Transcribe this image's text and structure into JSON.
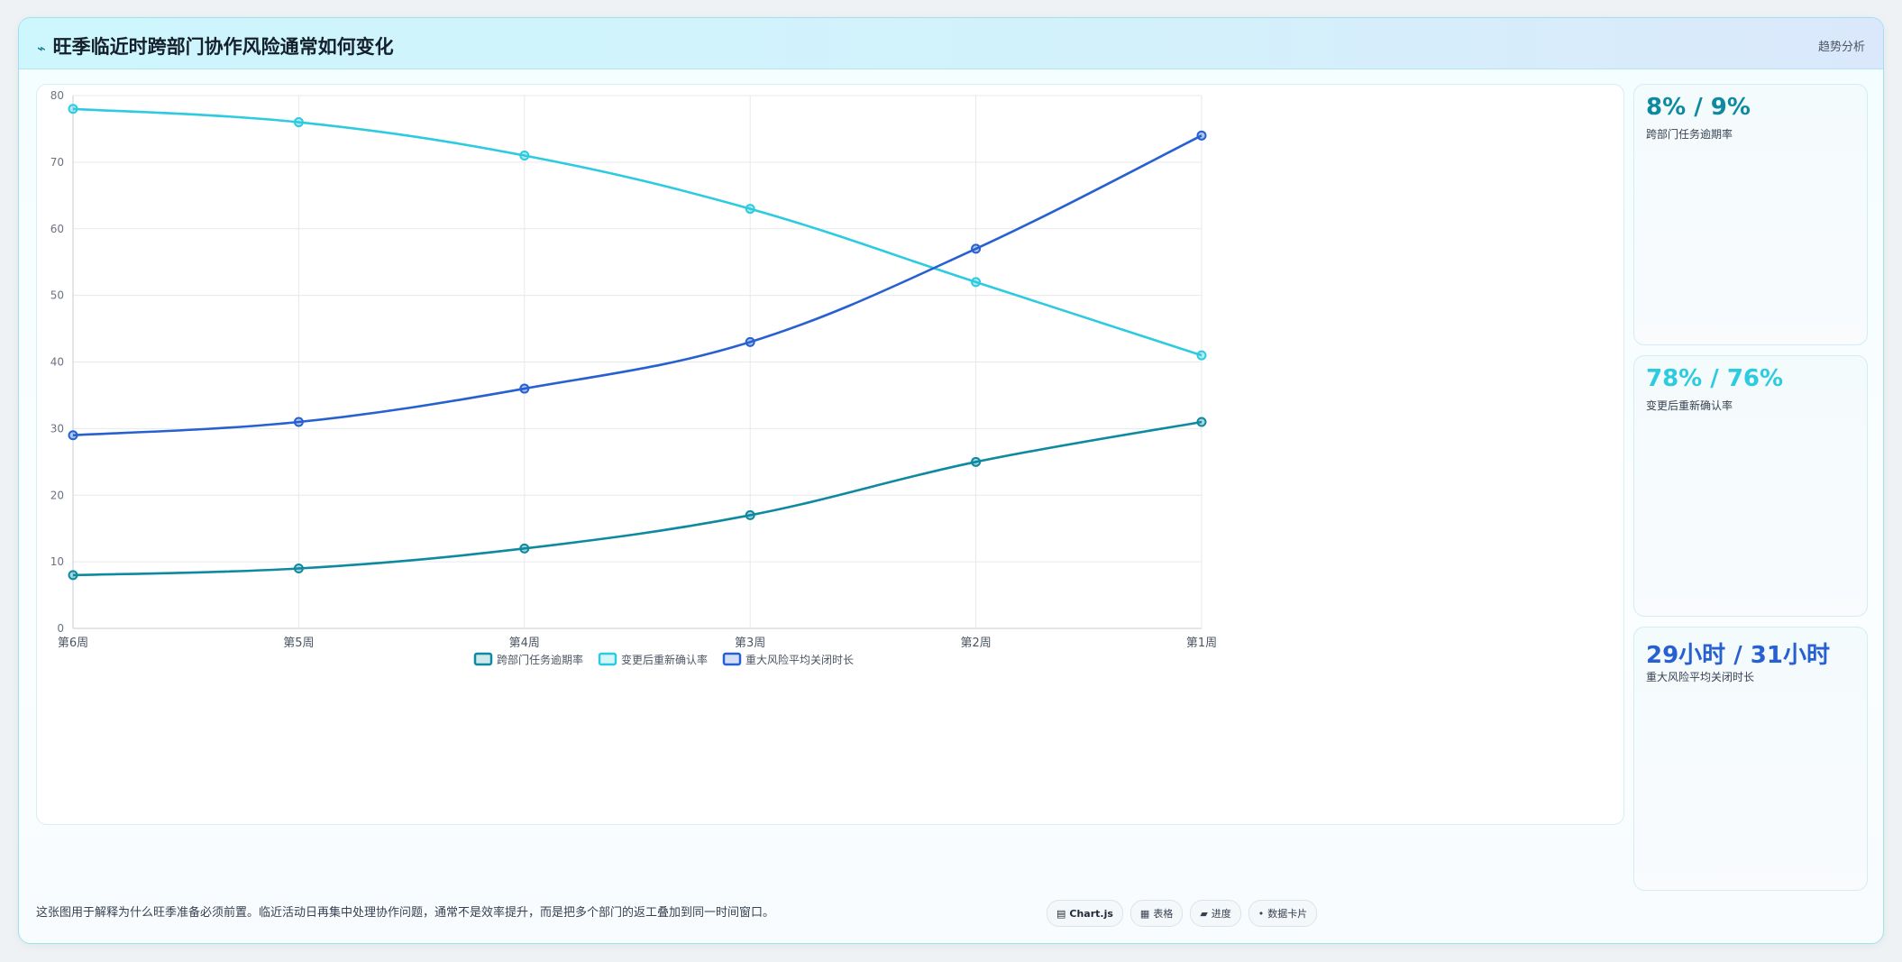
{
  "header": {
    "icon": "trend-icon",
    "title": "旺季临近时跨部门协作风险通常如何变化",
    "badge": "趋势分析"
  },
  "chart_data": {
    "type": "line",
    "categories": [
      "第6周",
      "第5周",
      "第4周",
      "第3周",
      "第2周",
      "第1周"
    ],
    "series": [
      {
        "name": "跨部门任务逾期率",
        "values": [
          8,
          9,
          12,
          17,
          25,
          31
        ],
        "color": "#0e8aa0"
      },
      {
        "name": "变更后重新确认率",
        "values": [
          78,
          76,
          71,
          63,
          52,
          41
        ],
        "color": "#2dcbe0"
      },
      {
        "name": "重大风险平均关闭时长",
        "values": [
          29,
          31,
          36,
          43,
          57,
          74
        ],
        "color": "#2760d1"
      }
    ],
    "ylim": [
      0,
      80
    ],
    "yticks": [
      0,
      10,
      20,
      30,
      40,
      50,
      60,
      70,
      80
    ],
    "grid": true,
    "legend_position": "bottom-center",
    "smooth": true
  },
  "kpis": [
    {
      "value": "8% / 9%",
      "label": "跨部门任务逾期率",
      "color": "#0e8aa0"
    },
    {
      "value": "78% / 76%",
      "label": "变更后重新确认率",
      "color": "#2dcbe0"
    },
    {
      "value": "29小时 / 31小时",
      "label": "重大风险平均关闭时长",
      "color": "#2760d1"
    }
  ],
  "footer": {
    "note": "这张图用于解释为什么旺季准备必须前置。临近活动日再集中处理协作问题，通常不是效率提升，而是把多个部门的返工叠加到同一时间窗口。",
    "pills": [
      {
        "icon": "chart-icon",
        "label": "Chart.js",
        "active": true
      },
      {
        "icon": "table-icon",
        "label": "表格",
        "active": false
      },
      {
        "icon": "progress-icon",
        "label": "进度",
        "active": false
      },
      {
        "icon": "card-icon",
        "label": "数据卡片",
        "active": false
      }
    ]
  }
}
